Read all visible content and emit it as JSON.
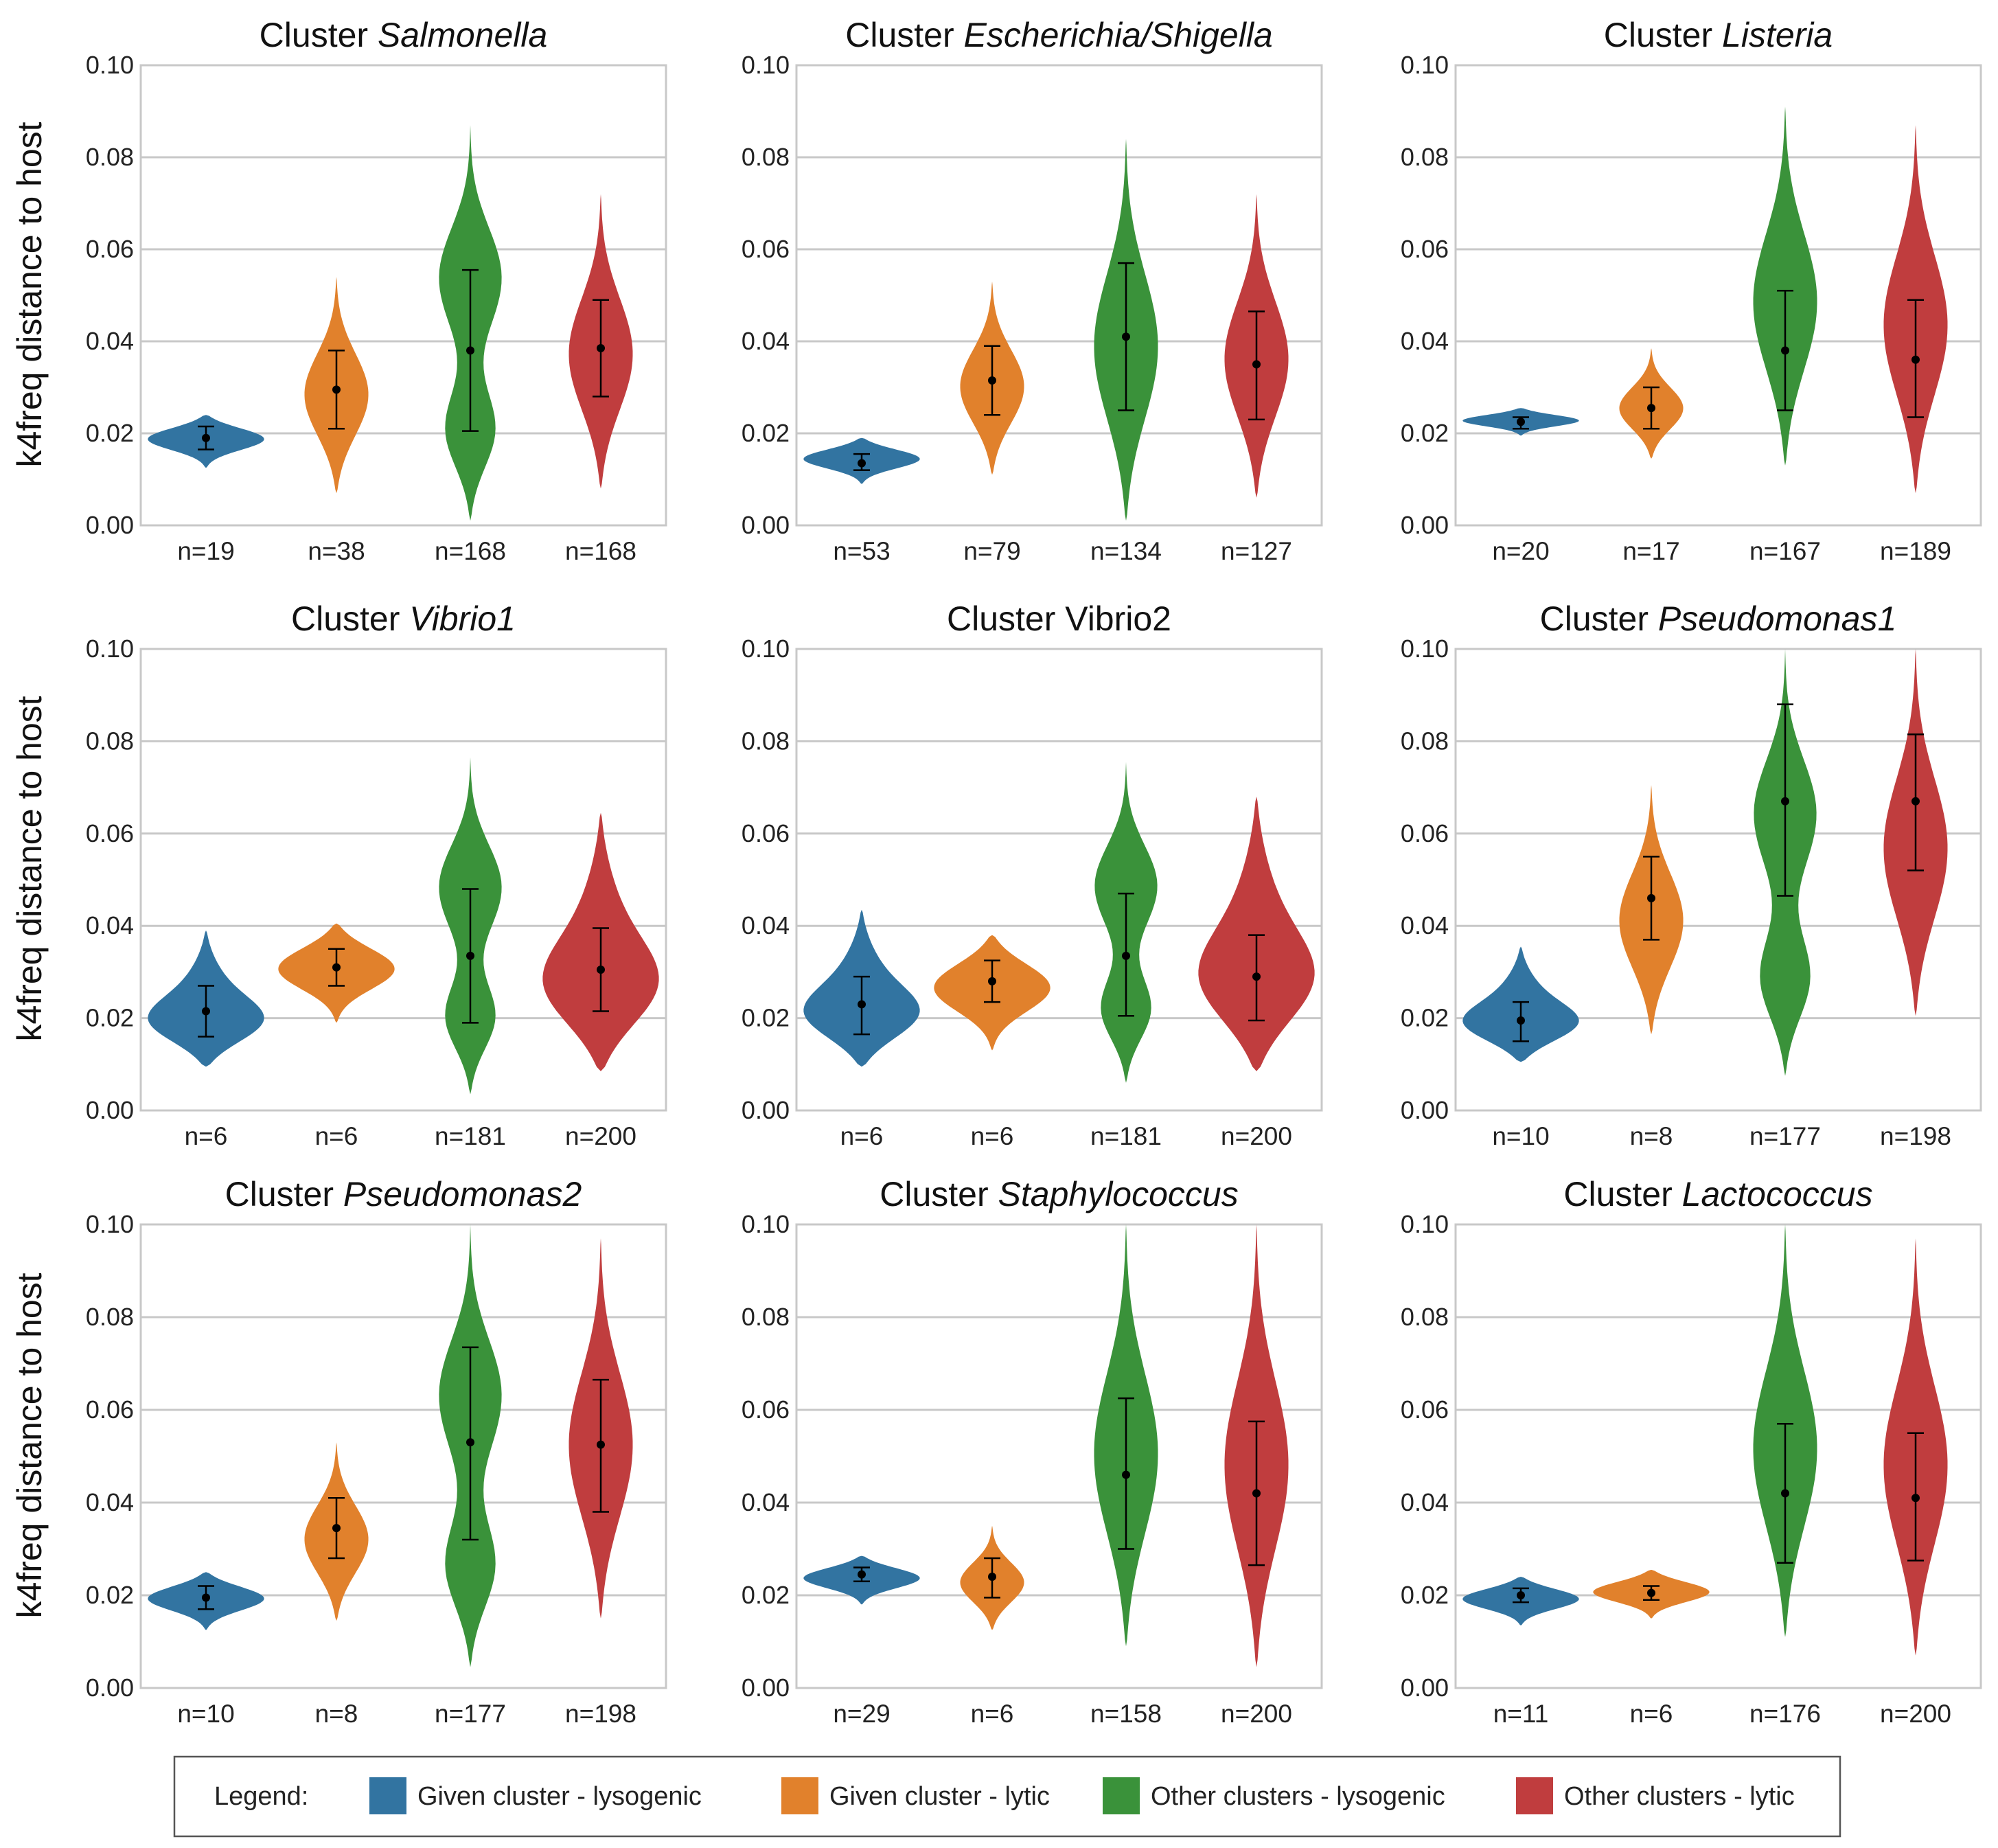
{
  "colors": {
    "lysogenic_given": "#3274a1",
    "lytic_given": "#e1812c",
    "lysogenic_other": "#3a923a",
    "lytic_other": "#c03d3e"
  },
  "y_axis_label": "k4freq distance to host",
  "y_ticks": [
    "0.00",
    "0.02",
    "0.04",
    "0.06",
    "0.08",
    "0.10"
  ],
  "legend": {
    "title": "Legend:",
    "items": [
      {
        "label": "Given cluster - lysogenic",
        "color": "#3274a1"
      },
      {
        "label": "Given cluster - lytic",
        "color": "#e1812c"
      },
      {
        "label": "Other clusters - lysogenic",
        "color": "#3a923a"
      },
      {
        "label": "Other clusters - lytic",
        "color": "#c03d3e"
      }
    ]
  },
  "chart_data": [
    {
      "type": "violin",
      "title_prefix": "Cluster",
      "title_name": "Salmonella",
      "italic": true,
      "ylim": [
        0,
        0.1
      ],
      "categories": [
        "n=19",
        "n=38",
        "n=168",
        "n=168"
      ],
      "series": [
        {
          "mean": 0.019,
          "err": [
            0.0165,
            0.0215
          ],
          "range": [
            0.0125,
            0.024
          ],
          "shape": "flat"
        },
        {
          "mean": 0.0295,
          "err": [
            0.021,
            0.038
          ],
          "range": [
            0.007,
            0.054
          ],
          "shape": "normal"
        },
        {
          "mean": 0.038,
          "err": [
            0.0205,
            0.0555
          ],
          "range": [
            0.001,
            0.087
          ],
          "shape": "bimodal"
        },
        {
          "mean": 0.0385,
          "err": [
            0.028,
            0.049
          ],
          "range": [
            0.008,
            0.072
          ],
          "shape": "normal"
        }
      ]
    },
    {
      "type": "violin",
      "title_prefix": "Cluster",
      "title_name": "Escherichia/Shigella",
      "italic": true,
      "ylim": [
        0,
        0.1
      ],
      "categories": [
        "n=53",
        "n=79",
        "n=134",
        "n=127"
      ],
      "series": [
        {
          "mean": 0.0135,
          "err": [
            0.012,
            0.0155
          ],
          "range": [
            0.009,
            0.019
          ],
          "shape": "flat"
        },
        {
          "mean": 0.0315,
          "err": [
            0.024,
            0.039
          ],
          "range": [
            0.011,
            0.053
          ],
          "shape": "normal"
        },
        {
          "mean": 0.041,
          "err": [
            0.025,
            0.057
          ],
          "range": [
            0.001,
            0.084
          ],
          "shape": "normal"
        },
        {
          "mean": 0.035,
          "err": [
            0.023,
            0.0465
          ],
          "range": [
            0.006,
            0.072
          ],
          "shape": "normal"
        }
      ]
    },
    {
      "type": "violin",
      "title_prefix": "Cluster",
      "title_name": "Listeria",
      "italic": true,
      "ylim": [
        0,
        0.1
      ],
      "categories": [
        "n=20",
        "n=17",
        "n=167",
        "n=189"
      ],
      "series": [
        {
          "mean": 0.0225,
          "err": [
            0.021,
            0.0235
          ],
          "range": [
            0.0195,
            0.0255
          ],
          "shape": "flat"
        },
        {
          "mean": 0.0255,
          "err": [
            0.021,
            0.03
          ],
          "range": [
            0.0145,
            0.0385
          ],
          "shape": "normal"
        },
        {
          "mean": 0.038,
          "err": [
            0.025,
            0.051
          ],
          "range": [
            0.013,
            0.091
          ],
          "shape": "normal"
        },
        {
          "mean": 0.036,
          "err": [
            0.0235,
            0.049
          ],
          "range": [
            0.007,
            0.087
          ],
          "shape": "normal"
        }
      ]
    },
    {
      "type": "violin",
      "title_prefix": "Cluster",
      "title_name": "Vibrio1",
      "italic": true,
      "ylim": [
        0,
        0.1
      ],
      "categories": [
        "n=6",
        "n=6",
        "n=181",
        "n=200"
      ],
      "series": [
        {
          "mean": 0.0215,
          "err": [
            0.016,
            0.027
          ],
          "range": [
            0.0095,
            0.039
          ],
          "shape": "bottom"
        },
        {
          "mean": 0.031,
          "err": [
            0.027,
            0.035
          ],
          "range": [
            0.019,
            0.0405
          ],
          "shape": "flat"
        },
        {
          "mean": 0.0335,
          "err": [
            0.019,
            0.048
          ],
          "range": [
            0.0035,
            0.0765
          ],
          "shape": "bimodal"
        },
        {
          "mean": 0.0305,
          "err": [
            0.0215,
            0.0395
          ],
          "range": [
            0.0085,
            0.0645
          ],
          "shape": "bottom"
        }
      ]
    },
    {
      "type": "violin",
      "title_prefix": "Cluster",
      "title_name": "Vibrio2",
      "italic": false,
      "ylim": [
        0,
        0.1
      ],
      "categories": [
        "n=6",
        "n=6",
        "n=181",
        "n=200"
      ],
      "series": [
        {
          "mean": 0.023,
          "err": [
            0.0165,
            0.029
          ],
          "range": [
            0.0095,
            0.0435
          ],
          "shape": "bottom"
        },
        {
          "mean": 0.028,
          "err": [
            0.0235,
            0.0325
          ],
          "range": [
            0.013,
            0.038
          ],
          "shape": "flat"
        },
        {
          "mean": 0.0335,
          "err": [
            0.0205,
            0.047
          ],
          "range": [
            0.006,
            0.0755
          ],
          "shape": "bimodal"
        },
        {
          "mean": 0.029,
          "err": [
            0.0195,
            0.038
          ],
          "range": [
            0.0085,
            0.068
          ],
          "shape": "bottom"
        }
      ]
    },
    {
      "type": "violin",
      "title_prefix": "Cluster",
      "title_name": "Pseudomonas1",
      "italic": true,
      "ylim": [
        0,
        0.1
      ],
      "categories": [
        "n=10",
        "n=8",
        "n=177",
        "n=198"
      ],
      "series": [
        {
          "mean": 0.0195,
          "err": [
            0.015,
            0.0235
          ],
          "range": [
            0.0105,
            0.0355
          ],
          "shape": "bottom"
        },
        {
          "mean": 0.046,
          "err": [
            0.037,
            0.055
          ],
          "range": [
            0.0165,
            0.0705
          ],
          "shape": "normal"
        },
        {
          "mean": 0.067,
          "err": [
            0.0465,
            0.088
          ],
          "range": [
            0.0075,
            0.1
          ],
          "shape": "bimodal"
        },
        {
          "mean": 0.067,
          "err": [
            0.052,
            0.0815
          ],
          "range": [
            0.0205,
            0.1
          ],
          "shape": "normal"
        }
      ]
    },
    {
      "type": "violin",
      "title_prefix": "Cluster",
      "title_name": "Pseudomonas2",
      "italic": true,
      "ylim": [
        0,
        0.1
      ],
      "categories": [
        "n=10",
        "n=8",
        "n=177",
        "n=198"
      ],
      "series": [
        {
          "mean": 0.0195,
          "err": [
            0.017,
            0.022
          ],
          "range": [
            0.0125,
            0.025
          ],
          "shape": "flat"
        },
        {
          "mean": 0.0345,
          "err": [
            0.028,
            0.041
          ],
          "range": [
            0.0145,
            0.053
          ],
          "shape": "normal"
        },
        {
          "mean": 0.053,
          "err": [
            0.032,
            0.0735
          ],
          "range": [
            0.0045,
            0.1
          ],
          "shape": "bimodal"
        },
        {
          "mean": 0.0525,
          "err": [
            0.038,
            0.0665
          ],
          "range": [
            0.015,
            0.097
          ],
          "shape": "normal"
        }
      ]
    },
    {
      "type": "violin",
      "title_prefix": "Cluster",
      "title_name": "Staphylococcus",
      "italic": true,
      "ylim": [
        0,
        0.1
      ],
      "categories": [
        "n=29",
        "n=6",
        "n=158",
        "n=200"
      ],
      "series": [
        {
          "mean": 0.0245,
          "err": [
            0.023,
            0.026
          ],
          "range": [
            0.018,
            0.0285
          ],
          "shape": "flat"
        },
        {
          "mean": 0.024,
          "err": [
            0.0195,
            0.028
          ],
          "range": [
            0.0125,
            0.035
          ],
          "shape": "normal"
        },
        {
          "mean": 0.046,
          "err": [
            0.03,
            0.0625
          ],
          "range": [
            0.009,
            0.1
          ],
          "shape": "normal"
        },
        {
          "mean": 0.042,
          "err": [
            0.0265,
            0.0575
          ],
          "range": [
            0.0045,
            0.1
          ],
          "shape": "normal"
        }
      ]
    },
    {
      "type": "violin",
      "title_prefix": "Cluster",
      "title_name": "Lactococcus",
      "italic": true,
      "ylim": [
        0,
        0.1
      ],
      "categories": [
        "n=11",
        "n=6",
        "n=176",
        "n=200"
      ],
      "series": [
        {
          "mean": 0.02,
          "err": [
            0.0185,
            0.0215
          ],
          "range": [
            0.0135,
            0.024
          ],
          "shape": "flat"
        },
        {
          "mean": 0.0205,
          "err": [
            0.019,
            0.022
          ],
          "range": [
            0.015,
            0.0255
          ],
          "shape": "flat"
        },
        {
          "mean": 0.042,
          "err": [
            0.027,
            0.057
          ],
          "range": [
            0.011,
            0.1
          ],
          "shape": "normal"
        },
        {
          "mean": 0.041,
          "err": [
            0.0275,
            0.055
          ],
          "range": [
            0.007,
            0.097
          ],
          "shape": "normal"
        }
      ]
    }
  ]
}
